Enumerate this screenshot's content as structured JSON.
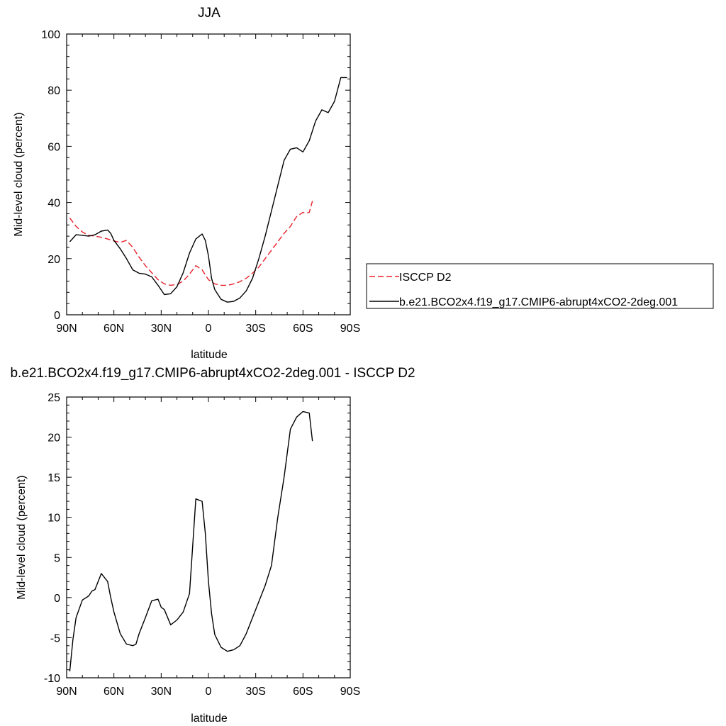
{
  "chart_data": [
    {
      "type": "line",
      "title": "JJA",
      "xlabel": "latitude",
      "ylabel": "Mid-level cloud (percent)",
      "xlim": [
        90,
        -90
      ],
      "ylim": [
        0,
        100
      ],
      "xticks": [
        {
          "value": 90,
          "label": "90N"
        },
        {
          "value": 60,
          "label": "60N"
        },
        {
          "value": 30,
          "label": "30N"
        },
        {
          "value": 0,
          "label": "0"
        },
        {
          "value": -30,
          "label": "30S"
        },
        {
          "value": -60,
          "label": "60S"
        },
        {
          "value": -90,
          "label": "90S"
        }
      ],
      "yticks": [
        {
          "value": 0,
          "label": "0"
        },
        {
          "value": 20,
          "label": "20"
        },
        {
          "value": 40,
          "label": "40"
        },
        {
          "value": 60,
          "label": "60"
        },
        {
          "value": 80,
          "label": "80"
        },
        {
          "value": 100,
          "label": "100"
        }
      ],
      "legend": {
        "placement": "right",
        "border": true
      },
      "series": [
        {
          "name": "ISCCP D2",
          "color": "#e8212b",
          "dash": "dashed",
          "x": [
            88,
            84,
            80,
            76,
            72,
            68,
            64,
            60,
            56,
            52,
            48,
            44,
            40,
            36,
            32,
            28,
            24,
            20,
            16,
            12,
            8,
            4,
            0,
            -4,
            -8,
            -12,
            -16,
            -20,
            -24,
            -28,
            -32,
            -36,
            -40,
            -44,
            -48,
            -52,
            -56,
            -60,
            -62,
            -64,
            -66
          ],
          "y": [
            34.5,
            31.5,
            29.5,
            28.3,
            28,
            27.6,
            27,
            26.3,
            25.8,
            26.5,
            24,
            20.5,
            17.5,
            15,
            12.5,
            11,
            10.5,
            10.8,
            12,
            14.5,
            17.5,
            16,
            12.5,
            11,
            10.5,
            10.5,
            11,
            11.8,
            13,
            14.8,
            17,
            20,
            23,
            26,
            29,
            31.5,
            35,
            36.5,
            36.2,
            36.5,
            40.5
          ]
        },
        {
          "name": "b.e21.BCO2x4.f19_g17.CMIP6-abrupt4xCO2-2deg.001",
          "color": "#000000",
          "dash": "solid",
          "x": [
            88,
            84,
            80,
            76,
            72,
            68,
            64,
            62,
            60,
            56,
            52,
            48,
            44,
            40,
            36,
            32,
            28,
            24,
            20,
            16,
            12,
            8,
            4,
            2,
            0,
            -2,
            -4,
            -8,
            -12,
            -16,
            -20,
            -24,
            -28,
            -32,
            -36,
            -40,
            -44,
            -48,
            -52,
            -56,
            -60,
            -64,
            -68,
            -72,
            -76,
            -80,
            -84,
            -88
          ],
          "y": [
            26,
            28.5,
            28.3,
            28,
            28.5,
            29.8,
            30.2,
            29,
            26.5,
            23.5,
            20,
            16,
            14.8,
            14.5,
            13.5,
            10.5,
            7.2,
            7.5,
            10,
            15,
            22,
            27,
            28.8,
            26.5,
            21,
            13,
            9,
            5.5,
            4.5,
            4.8,
            6,
            8.5,
            13,
            20,
            28,
            37,
            46,
            55,
            59,
            59.5,
            58,
            62,
            69,
            73,
            72,
            76,
            84.5,
            84.5
          ]
        }
      ]
    },
    {
      "type": "line",
      "title": "b.e21.BCO2x4.f19_g17.CMIP6-abrupt4xCO2-2deg.001 - ISCCP D2",
      "xlabel": "latitude",
      "ylabel": "Mid-level cloud (percent)",
      "xlim": [
        90,
        -90
      ],
      "ylim": [
        -10,
        25
      ],
      "xticks": [
        {
          "value": 90,
          "label": "90N"
        },
        {
          "value": 60,
          "label": "60N"
        },
        {
          "value": 30,
          "label": "30N"
        },
        {
          "value": 0,
          "label": "0"
        },
        {
          "value": -30,
          "label": "30S"
        },
        {
          "value": -60,
          "label": "60S"
        },
        {
          "value": -90,
          "label": "90S"
        }
      ],
      "yticks": [
        {
          "value": -10,
          "label": "-10"
        },
        {
          "value": -5,
          "label": "-5"
        },
        {
          "value": 0,
          "label": "0"
        },
        {
          "value": 5,
          "label": "5"
        },
        {
          "value": 10,
          "label": "10"
        },
        {
          "value": 15,
          "label": "15"
        },
        {
          "value": 20,
          "label": "20"
        },
        {
          "value": 25,
          "label": "25"
        }
      ],
      "series": [
        {
          "color": "#000000",
          "dash": "solid",
          "x": [
            88,
            86,
            84,
            80,
            76,
            74,
            72,
            68,
            64,
            62,
            60,
            56,
            52,
            48,
            46,
            44,
            40,
            36,
            32,
            30,
            28,
            24,
            20,
            16,
            12,
            8,
            4,
            2,
            0,
            -2,
            -4,
            -8,
            -12,
            -16,
            -20,
            -24,
            -28,
            -32,
            -36,
            -40,
            -44,
            -48,
            -52,
            -56,
            -60,
            -64,
            -66
          ],
          "y": [
            -9.2,
            -5.2,
            -2.5,
            -0.3,
            0.2,
            0.8,
            1,
            3,
            2,
            0,
            -1.8,
            -4.5,
            -5.8,
            -6,
            -5.8,
            -4.5,
            -2.5,
            -0.4,
            -0.2,
            -1.2,
            -1.5,
            -3.4,
            -2.8,
            -1.8,
            0.5,
            12.3,
            12,
            8,
            2,
            -2,
            -4.6,
            -6.2,
            -6.7,
            -6.5,
            -6,
            -4.5,
            -2.5,
            -0.5,
            1.5,
            4,
            10,
            15,
            21,
            22.5,
            23.2,
            23,
            19.5
          ]
        }
      ]
    }
  ]
}
